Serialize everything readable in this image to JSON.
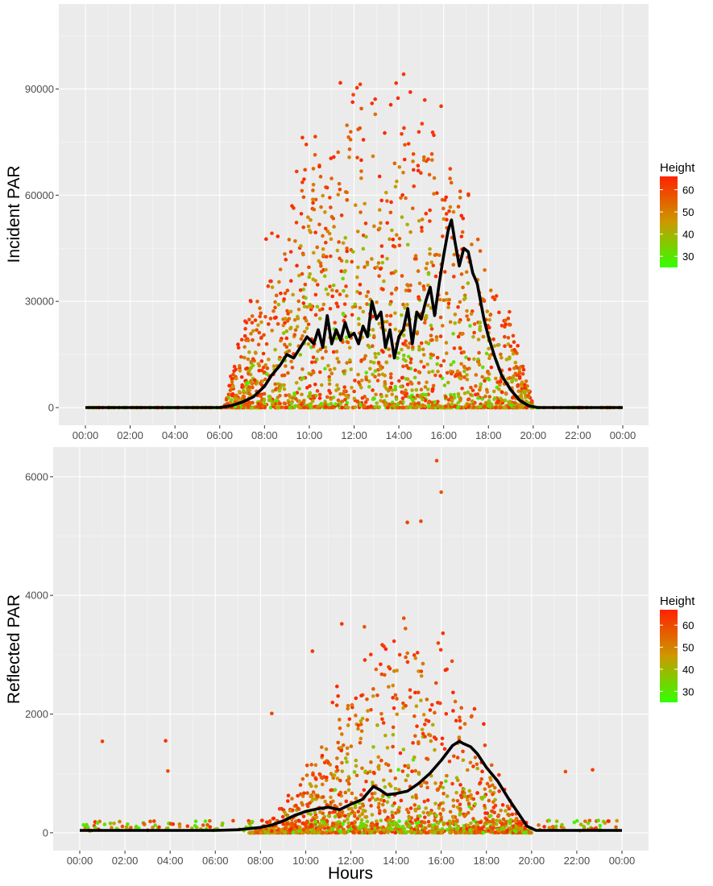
{
  "chart_data": [
    {
      "type": "scatter",
      "ylabel": "Incident PAR",
      "xlabel": "",
      "x_ticks": [
        "00:00",
        "02:00",
        "04:00",
        "06:00",
        "08:00",
        "10:00",
        "12:00",
        "14:00",
        "16:00",
        "18:00",
        "20:00",
        "22:00",
        "00:00"
      ],
      "xlim_hours": [
        0,
        24
      ],
      "y_ticks": [
        0,
        30000,
        60000,
        90000
      ],
      "ylim": [
        -5000,
        114000
      ],
      "grid": true,
      "legend": {
        "title": "Height",
        "position": "right",
        "labels": [
          60,
          50,
          40,
          30
        ],
        "range": [
          25,
          66
        ],
        "color_low": "#33ff00",
        "color_mid": "#cc9900",
        "color_high": "#ff2200"
      },
      "point_cloud": {
        "color_variable": "Height",
        "max_value": 109000,
        "profile_hours": [
          6.2,
          7,
          8,
          9,
          10,
          11,
          12,
          13,
          14,
          15,
          16,
          17,
          17.5,
          18,
          19,
          20
        ]
      },
      "series": [
        {
          "name": "Mean",
          "color": "#000000",
          "x_hours": [
            0,
            2,
            4,
            6,
            6.5,
            7,
            7.5,
            8,
            8.3,
            8.7,
            9.0,
            9.3,
            9.6,
            9.9,
            10.2,
            10.4,
            10.6,
            10.8,
            11.0,
            11.2,
            11.4,
            11.6,
            11.8,
            12.0,
            12.2,
            12.4,
            12.6,
            12.8,
            13.0,
            13.2,
            13.4,
            13.6,
            13.8,
            14.0,
            14.2,
            14.4,
            14.6,
            14.8,
            15.0,
            15.2,
            15.4,
            15.6,
            15.8,
            16.0,
            16.2,
            16.35,
            16.5,
            16.7,
            16.9,
            17.1,
            17.3,
            17.5,
            17.8,
            18.0,
            18.3,
            18.6,
            19.0,
            19.4,
            19.8,
            20.2,
            22,
            24
          ],
          "y": [
            0,
            0,
            0,
            0,
            500,
            1500,
            3000,
            6000,
            9000,
            12000,
            15000,
            14000,
            17000,
            20000,
            18000,
            22000,
            17000,
            26000,
            18000,
            22000,
            19000,
            24000,
            20000,
            21000,
            18000,
            23000,
            20000,
            30000,
            25000,
            27000,
            17000,
            22000,
            14000,
            20000,
            22000,
            28000,
            18000,
            27000,
            25000,
            30000,
            34000,
            26000,
            35000,
            43000,
            50000,
            53000,
            47000,
            40000,
            45000,
            44000,
            38000,
            35000,
            25000,
            20000,
            14000,
            9000,
            5000,
            2000,
            500,
            0,
            0,
            0
          ]
        }
      ]
    },
    {
      "type": "scatter",
      "ylabel": "Reflected PAR",
      "xlabel": "Hours",
      "x_ticks": [
        "00:00",
        "02:00",
        "04:00",
        "06:00",
        "08:00",
        "10:00",
        "12:00",
        "14:00",
        "16:00",
        "18:00",
        "20:00",
        "22:00",
        "00:00"
      ],
      "xlim_hours": [
        0,
        24
      ],
      "y_ticks": [
        0,
        2000,
        4000,
        6000
      ],
      "ylim": [
        -300,
        6500
      ],
      "grid": true,
      "legend": {
        "title": "Height",
        "position": "right",
        "labels": [
          60,
          50,
          40,
          30
        ],
        "range": [
          25,
          67
        ],
        "color_low": "#33ff00",
        "color_mid": "#cc9900",
        "color_high": "#ff2200"
      },
      "point_cloud": {
        "color_variable": "Height",
        "max_value": 6270,
        "profile_hours": [
          7.5,
          8.5,
          9.5,
          10.5,
          11.5,
          12.5,
          13.5,
          14.5,
          15.5,
          16.5,
          17.5,
          18.5,
          19.5,
          20
        ]
      },
      "series": [
        {
          "name": "Mean",
          "color": "#000000",
          "x_hours": [
            0,
            2,
            4,
            6,
            7,
            8,
            8.5,
            9.0,
            9.5,
            10.0,
            10.5,
            11.0,
            11.5,
            12.0,
            12.5,
            13.0,
            13.3,
            13.6,
            14.0,
            14.5,
            15.0,
            15.5,
            16.0,
            16.5,
            16.8,
            17.0,
            17.3,
            17.6,
            18.0,
            18.5,
            19.0,
            19.5,
            19.8,
            20.2,
            21,
            22,
            23,
            24
          ],
          "y": [
            40,
            40,
            40,
            40,
            50,
            90,
            130,
            200,
            290,
            360,
            400,
            430,
            390,
            480,
            560,
            780,
            720,
            640,
            660,
            700,
            830,
            1000,
            1220,
            1470,
            1540,
            1500,
            1450,
            1330,
            1100,
            870,
            560,
            280,
            110,
            40,
            40,
            40,
            40,
            40
          ]
        }
      ],
      "outliers": [
        {
          "hour": 1.0,
          "value": 1540,
          "height": 62
        },
        {
          "hour": 3.8,
          "value": 1550,
          "height": 64
        },
        {
          "hour": 3.9,
          "value": 1040,
          "height": 60
        },
        {
          "hour": 21.5,
          "value": 1030,
          "height": 60
        },
        {
          "hour": 22.7,
          "value": 1060,
          "height": 62
        },
        {
          "hour": 15.8,
          "value": 6270,
          "height": 60
        },
        {
          "hour": 16.0,
          "value": 5740,
          "height": 58
        },
        {
          "hour": 14.5,
          "value": 5230,
          "height": 62
        },
        {
          "hour": 15.1,
          "value": 5250,
          "height": 60
        },
        {
          "hour": 12.6,
          "value": 3470,
          "height": 58
        },
        {
          "hour": 8.5,
          "value": 2010,
          "height": 62
        },
        {
          "hour": 10.3,
          "value": 3060,
          "height": 64
        },
        {
          "hour": 11.6,
          "value": 3520,
          "height": 64
        }
      ]
    }
  ]
}
